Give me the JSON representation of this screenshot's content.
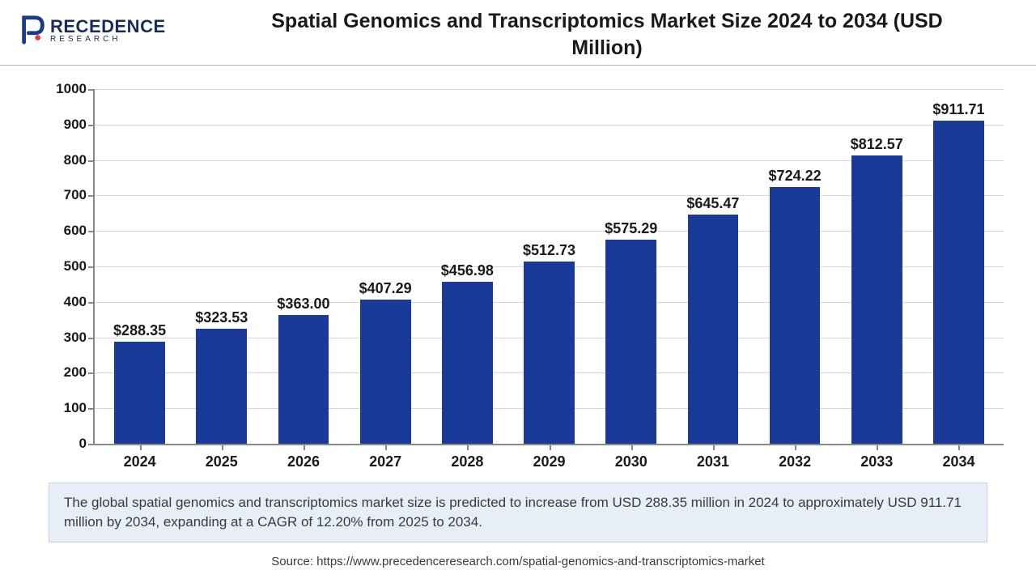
{
  "logo": {
    "main": "RECEDENCE",
    "sub": "RESEARCH",
    "icon_color": "#1a3a8a"
  },
  "title": "Spatial Genomics and Transcriptomics Market Size 2024 to 2034 (USD Million)",
  "chart": {
    "type": "bar",
    "bar_color": "#1a3a9a",
    "grid_color": "#d8d8d8",
    "axis_color": "#888888",
    "background_color": "#ffffff",
    "label_fontsize": 17,
    "value_fontsize": 18,
    "value_prefix": "$",
    "ylim": [
      0,
      1000
    ],
    "ytick_step": 100,
    "bar_width": 0.62,
    "categories": [
      "2024",
      "2025",
      "2026",
      "2027",
      "2028",
      "2029",
      "2030",
      "2031",
      "2032",
      "2033",
      "2034"
    ],
    "values": [
      288.35,
      323.53,
      363.0,
      407.29,
      456.98,
      512.73,
      575.29,
      645.47,
      724.22,
      812.57,
      911.71
    ],
    "value_labels": [
      "$288.35",
      "$323.53",
      "$363.00",
      "$407.29",
      "$456.98",
      "$512.73",
      "$575.29",
      "$645.47",
      "$724.22",
      "$812.57",
      "$911.71"
    ]
  },
  "description": "The global spatial genomics and transcriptomics market size is predicted to increase from USD 288.35 million in 2024 to approximately USD 911.71 million by 2034, expanding at a CAGR of 12.20% from 2025 to 2034.",
  "description_bg": "#e7eef7",
  "source": "Source: https://www.precedenceresearch.com/spatial-genomics-and-transcriptomics-market"
}
